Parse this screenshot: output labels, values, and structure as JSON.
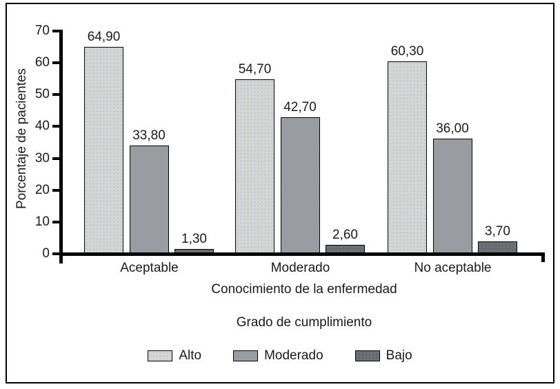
{
  "chart_data": {
    "type": "bar",
    "title": "",
    "categories": [
      "Aceptable",
      "Moderado",
      "No aceptable"
    ],
    "series": [
      {
        "name": "Alto",
        "color": "#d4d6d4",
        "values": [
          64.9,
          54.7,
          60.3
        ],
        "labels": [
          "64,90",
          "54,70",
          "60,30"
        ]
      },
      {
        "name": "Moderado",
        "color": "#9a9ca0",
        "values": [
          33.8,
          42.7,
          36.0
        ],
        "labels": [
          "33,80",
          "42,70",
          "36,00"
        ]
      },
      {
        "name": "Bajo",
        "color": "#696c6e",
        "values": [
          1.3,
          2.6,
          3.7
        ],
        "labels": [
          "1,30",
          "2,60",
          "3,70"
        ]
      }
    ],
    "ylabel": "Porcentaje de pacientes",
    "xlabel": "Conocimiento de la enfermedad",
    "legend_title": "Grado de cumplimiento",
    "ylim": [
      0,
      70
    ],
    "yticks": [
      0,
      10,
      20,
      30,
      40,
      50,
      60,
      70
    ],
    "legend_position": "bottom",
    "grid": false,
    "decimal_separator": ",",
    "axis_color": "#000000",
    "text_color": "#1a1a1a"
  }
}
